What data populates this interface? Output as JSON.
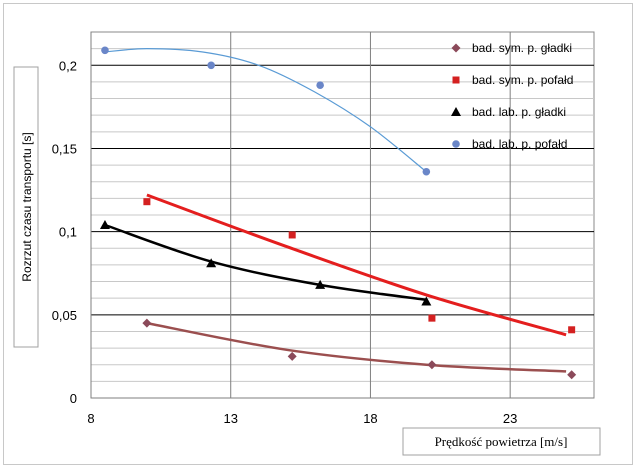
{
  "chart_data": {
    "type": "scatter",
    "xlabel": "Prędkość powietrza [m/s]",
    "ylabel": "Rozrzut czasu transportu [s]",
    "xlim": [
      8,
      26
    ],
    "ylim": [
      0,
      0.22
    ],
    "xticks": [
      8,
      13,
      18,
      23
    ],
    "xtick_labels": [
      "8",
      "13",
      "18",
      "23"
    ],
    "yticks": [
      0,
      0.05,
      0.1,
      0.15,
      0.2
    ],
    "ytick_labels": [
      "0",
      "0,05",
      "0,1",
      "0,15",
      "0,2"
    ],
    "grid": true,
    "legend_position": "top-right",
    "series": [
      {
        "name": "bad. sym. p. gładki",
        "marker": "diamond",
        "color": "#8B4A5A",
        "trend_color": "#9B4F4F",
        "points": [
          [
            10,
            0.045
          ],
          [
            15.2,
            0.025
          ],
          [
            20.2,
            0.02
          ],
          [
            25.2,
            0.014
          ]
        ],
        "trend": [
          [
            10,
            0.045
          ],
          [
            15,
            0.029
          ],
          [
            20,
            0.02
          ],
          [
            25,
            0.016
          ]
        ]
      },
      {
        "name": "bad. sym. p. pofałd",
        "marker": "square",
        "color": "#D42020",
        "trend_color": "#E41E1E",
        "points": [
          [
            10,
            0.118
          ],
          [
            15.2,
            0.098
          ],
          [
            20.2,
            0.048
          ],
          [
            25.2,
            0.041
          ]
        ],
        "trend": [
          [
            10,
            0.122
          ],
          [
            15,
            0.091
          ],
          [
            20,
            0.062
          ],
          [
            25,
            0.038
          ]
        ]
      },
      {
        "name": "bad. lab. p. gładki",
        "marker": "triangle",
        "color": "#000000",
        "trend_color": "#000000",
        "points": [
          [
            8.5,
            0.104
          ],
          [
            12.3,
            0.081
          ],
          [
            16.2,
            0.068
          ],
          [
            20,
            0.058
          ]
        ],
        "trend": [
          [
            8.5,
            0.104
          ],
          [
            12.3,
            0.082
          ],
          [
            16.2,
            0.068
          ],
          [
            20,
            0.059
          ]
        ]
      },
      {
        "name": "bad. lab. p. pofałd",
        "marker": "circle",
        "color": "#6A86C8",
        "trend_color": "#5A9BD5",
        "points": [
          [
            8.5,
            0.209
          ],
          [
            12.3,
            0.2
          ],
          [
            16.2,
            0.188
          ],
          [
            20,
            0.136
          ]
        ],
        "trend": [
          [
            8.5,
            0.208
          ],
          [
            10,
            0.21
          ],
          [
            12,
            0.208
          ],
          [
            14,
            0.2
          ],
          [
            16,
            0.184
          ],
          [
            18,
            0.163
          ],
          [
            20,
            0.136
          ]
        ]
      }
    ]
  }
}
